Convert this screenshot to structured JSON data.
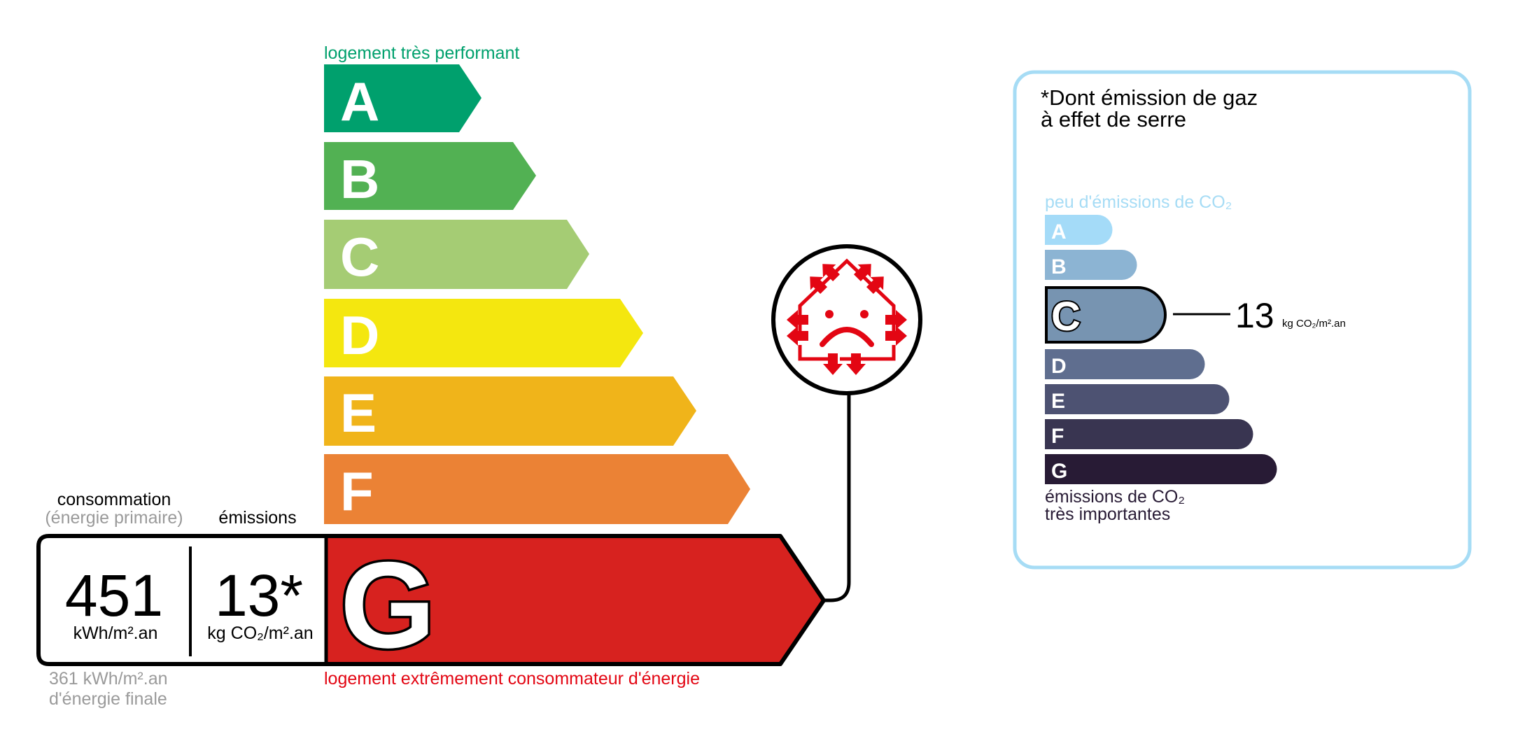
{
  "dpe": {
    "top_label": "logement très performant",
    "bottom_label": "logement extrêmement consommateur d'énergie",
    "classes": [
      {
        "letter": "A",
        "color": "#00a06d"
      },
      {
        "letter": "B",
        "color": "#52b153"
      },
      {
        "letter": "C",
        "color": "#a5cc74"
      },
      {
        "letter": "D",
        "color": "#f4e70f"
      },
      {
        "letter": "E",
        "color": "#f0b41a"
      },
      {
        "letter": "F",
        "color": "#eb8235"
      },
      {
        "letter": "G",
        "color": "#d7221f"
      }
    ],
    "current_class": "G",
    "consumption_label": "consommation",
    "consumption_sublabel": "(énergie primaire)",
    "emissions_label": "émissions",
    "consumption_value": "451",
    "consumption_unit": "kWh/m².an",
    "emissions_value": "13*",
    "emissions_unit": "kg CO₂/m².an",
    "final_energy_value": "361 kWh/m².an",
    "final_energy_label": "d'énergie finale",
    "icon": "house-heat-loss-sad-face-icon",
    "icon_color": "#e30613"
  },
  "ges": {
    "title_line1": "*Dont émission de gaz",
    "title_line2": "à effet de serre",
    "top_label": "peu d'émissions de CO₂",
    "bottom_label_line1": "émissions de CO₂",
    "bottom_label_line2": "très importantes",
    "classes": [
      {
        "letter": "A",
        "color": "#a4dbf8"
      },
      {
        "letter": "B",
        "color": "#8cb4d3"
      },
      {
        "letter": "C",
        "color": "#7794b1"
      },
      {
        "letter": "D",
        "color": "#5f6e8f"
      },
      {
        "letter": "E",
        "color": "#4d5272"
      },
      {
        "letter": "F",
        "color": "#393551"
      },
      {
        "letter": "G",
        "color": "#281b35"
      }
    ],
    "current_class": "C",
    "value": "13",
    "unit": "kg CO₂/m².an",
    "border_color": "#a6dcf5"
  }
}
